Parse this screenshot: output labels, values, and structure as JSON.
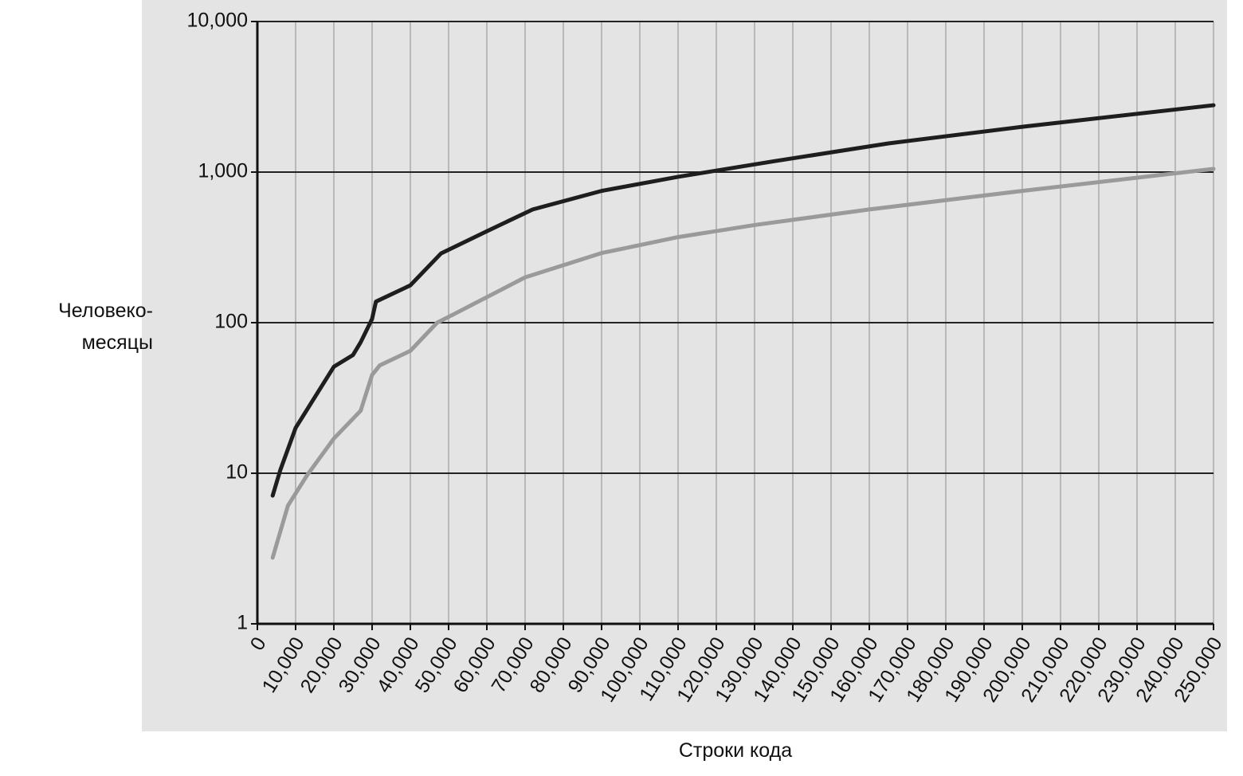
{
  "chart_data": {
    "type": "line",
    "xlabel": "Строки кода",
    "ylabel": [
      "Человеко-",
      "месяцы"
    ],
    "log_y": true,
    "grid": true,
    "xlim": [
      0,
      250000
    ],
    "xticks": [
      {
        "value": 0,
        "label": "0"
      },
      {
        "value": 10000,
        "label": "10,000"
      },
      {
        "value": 20000,
        "label": "20,000"
      },
      {
        "value": 30000,
        "label": "30,000"
      },
      {
        "value": 40000,
        "label": "40,000"
      },
      {
        "value": 50000,
        "label": "50,000"
      },
      {
        "value": 60000,
        "label": "60,000"
      },
      {
        "value": 70000,
        "label": "70,000"
      },
      {
        "value": 80000,
        "label": "80,000"
      },
      {
        "value": 90000,
        "label": "90,000"
      },
      {
        "value": 100000,
        "label": "100,000"
      },
      {
        "value": 110000,
        "label": "110,000"
      },
      {
        "value": 120000,
        "label": "120,000"
      },
      {
        "value": 130000,
        "label": "130,000"
      },
      {
        "value": 140000,
        "label": "140,000"
      },
      {
        "value": 150000,
        "label": "150,000"
      },
      {
        "value": 160000,
        "label": "160,000"
      },
      {
        "value": 170000,
        "label": "170,000"
      },
      {
        "value": 180000,
        "label": "180,000"
      },
      {
        "value": 190000,
        "label": "190,000"
      },
      {
        "value": 200000,
        "label": "200,000"
      },
      {
        "value": 210000,
        "label": "210,000"
      },
      {
        "value": 220000,
        "label": "220,000"
      },
      {
        "value": 230000,
        "label": "230,000"
      },
      {
        "value": 240000,
        "label": "240,000"
      },
      {
        "value": 250000,
        "label": "250,000"
      }
    ],
    "ylim": [
      1,
      10000
    ],
    "yticks": [
      1,
      10,
      100,
      {
        "value": 1000,
        "label": "1,000"
      },
      {
        "value": 10000,
        "label": "10,000"
      }
    ],
    "series": [
      {
        "color": "#1e1e1e",
        "x": [
          4000,
          6000,
          10000,
          20000,
          25000,
          27000,
          30000,
          31000,
          40000,
          48000,
          60000,
          72000,
          90000,
          110000,
          135000,
          165000,
          200000,
          250000
        ],
        "values": [
          7.1,
          10.5,
          20,
          51,
          61,
          74,
          106,
          138,
          177,
          288,
          405,
          565,
          750,
          930,
          1180,
          1550,
          2000,
          2780
        ]
      },
      {
        "color": "#9a9a9a",
        "x": [
          4000,
          8000,
          13000,
          20000,
          27000,
          30000,
          32000,
          40000,
          47000,
          52000,
          70000,
          90000,
          110000,
          130000,
          160000,
          200000,
          250000
        ],
        "values": [
          2.75,
          6.1,
          9.7,
          17,
          26,
          45,
          52,
          65,
          100,
          116,
          200,
          290,
          370,
          445,
          565,
          750,
          1050
        ]
      }
    ]
  }
}
